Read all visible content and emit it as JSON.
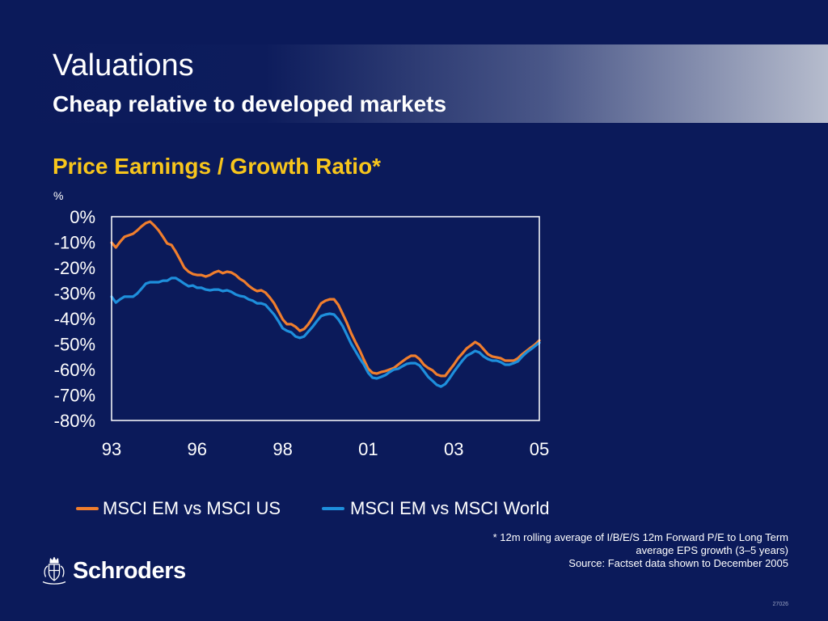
{
  "theme": {
    "background": "#0b1a5a",
    "title_accent": "#f7c51c"
  },
  "header": {
    "title": "Valuations",
    "subtitle": "Cheap relative to developed markets"
  },
  "chart_data": {
    "type": "line",
    "title": "Price Earnings / Growth Ratio*",
    "ylabel": "%",
    "xlabel": "",
    "x_tick_labels": [
      "93",
      "96",
      "98",
      "01",
      "03",
      "05"
    ],
    "y_ticks": [
      0,
      -10,
      -20,
      -30,
      -40,
      -50,
      -60,
      -70,
      -80
    ],
    "y_tick_labels": [
      "0%",
      "-10%",
      "-20%",
      "-30%",
      "-40%",
      "-50%",
      "-60%",
      "-70%",
      "-80%"
    ],
    "ylim": [
      -80,
      0
    ],
    "grid": false,
    "legend_position": "bottom",
    "series": [
      {
        "name": "MSCI EM vs MSCI US",
        "color": "#f07e2d",
        "values": [
          -10.2,
          -12.1,
          -9.8,
          -7.9,
          -7.3,
          -6.7,
          -5.4,
          -3.8,
          -2.5,
          -1.9,
          -3.5,
          -5.4,
          -7.9,
          -10.5,
          -11.1,
          -13.7,
          -16.8,
          -20.0,
          -21.6,
          -22.5,
          -22.9,
          -22.9,
          -23.5,
          -22.9,
          -21.9,
          -21.3,
          -22.2,
          -21.6,
          -21.9,
          -22.9,
          -24.4,
          -25.4,
          -27.0,
          -28.3,
          -29.2,
          -28.9,
          -29.8,
          -31.7,
          -34.0,
          -37.1,
          -40.3,
          -42.2,
          -42.2,
          -43.2,
          -44.8,
          -44.1,
          -42.2,
          -39.7,
          -36.8,
          -34.0,
          -33.0,
          -32.4,
          -32.4,
          -34.6,
          -38.1,
          -41.6,
          -45.7,
          -49.2,
          -52.4,
          -56.2,
          -59.7,
          -61.3,
          -61.6,
          -61.0,
          -60.6,
          -60.0,
          -59.4,
          -58.1,
          -56.8,
          -55.6,
          -54.6,
          -54.6,
          -55.9,
          -58.1,
          -59.4,
          -60.3,
          -61.9,
          -62.5,
          -62.5,
          -60.3,
          -58.1,
          -55.6,
          -53.7,
          -51.7,
          -50.5,
          -49.2,
          -50.2,
          -52.1,
          -54.0,
          -54.9,
          -55.2,
          -55.6,
          -56.5,
          -56.5,
          -56.5,
          -55.6,
          -54.0,
          -52.7,
          -51.4,
          -50.2,
          -48.6
        ]
      },
      {
        "name": "MSCI EM vs MSCI World",
        "color": "#1e8fdc",
        "values": [
          -31.4,
          -33.7,
          -32.4,
          -31.4,
          -31.4,
          -31.4,
          -30.2,
          -28.3,
          -26.3,
          -25.7,
          -25.7,
          -25.7,
          -25.1,
          -25.1,
          -24.1,
          -24.1,
          -25.1,
          -26.3,
          -27.3,
          -27.0,
          -27.9,
          -27.9,
          -28.6,
          -28.9,
          -28.6,
          -28.6,
          -29.2,
          -28.9,
          -29.5,
          -30.5,
          -31.1,
          -31.4,
          -32.4,
          -33.0,
          -34.0,
          -34.0,
          -34.6,
          -36.5,
          -38.4,
          -41.0,
          -43.8,
          -44.8,
          -45.4,
          -47.0,
          -47.6,
          -47.0,
          -45.1,
          -43.2,
          -41.0,
          -39.0,
          -38.4,
          -38.1,
          -38.4,
          -40.3,
          -42.9,
          -46.3,
          -49.8,
          -52.7,
          -55.6,
          -58.1,
          -61.3,
          -63.2,
          -63.5,
          -62.9,
          -62.2,
          -61.0,
          -60.0,
          -59.7,
          -58.7,
          -57.8,
          -57.5,
          -57.5,
          -58.4,
          -60.6,
          -62.9,
          -64.4,
          -66.0,
          -66.7,
          -65.7,
          -63.5,
          -61.0,
          -58.7,
          -56.5,
          -54.6,
          -53.7,
          -52.7,
          -53.3,
          -54.9,
          -55.9,
          -56.5,
          -56.5,
          -57.1,
          -58.1,
          -58.1,
          -57.5,
          -56.8,
          -54.9,
          -53.3,
          -52.1,
          -50.8,
          -49.5
        ]
      }
    ]
  },
  "footnote": {
    "lines": [
      "* 12m rolling average of I/B/E/S 12m Forward P/E to Long Term",
      "average EPS growth (3–5 years)",
      "Source: Factset data shown to December 2005"
    ]
  },
  "logo": {
    "wordmark": "Schroders",
    "icon": "schroders-crest-icon"
  },
  "slide_code": "27026"
}
